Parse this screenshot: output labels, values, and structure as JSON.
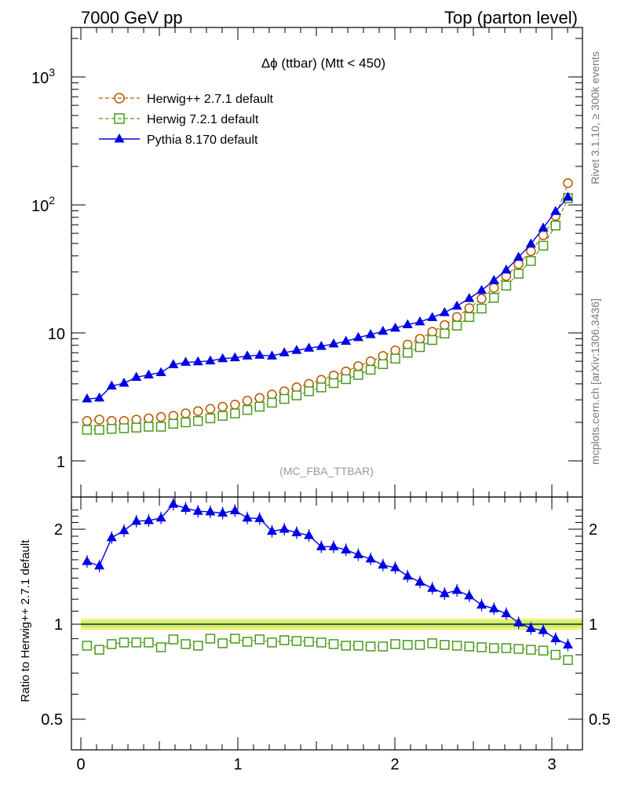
{
  "header": {
    "left": "7000 GeV pp",
    "right": "Top (parton level)"
  },
  "side_labels": {
    "rivet": "Rivet 3.1.10, ≥ 300k events",
    "mcplots": "mcplots.cern.ch [arXiv:1306.3436]"
  },
  "colors": {
    "herwigpp": "#b35900",
    "herwig7": "#4a9a1a",
    "pythia": "#0000e6",
    "band_yellow": "#f2f26a",
    "band_green": "#c8f07a"
  },
  "chart_data": [
    {
      "type": "line",
      "title": "Δϕ (ttbar) (Mtt < 450)",
      "watermark": "(MC_FBA_TTBAR)",
      "xlim": [
        -0.05,
        3.2
      ],
      "ylim": [
        0.6,
        2500
      ],
      "yscale": "log",
      "yticks": [
        {
          "value": 1,
          "label": "1"
        },
        {
          "value": 10,
          "label": "10"
        },
        {
          "value": 100,
          "label": "10^2"
        },
        {
          "value": 1000,
          "label": "10^3"
        }
      ],
      "legend": "top-left",
      "x": [
        0.0393,
        0.1178,
        0.1963,
        0.2749,
        0.3534,
        0.432,
        0.5105,
        0.589,
        0.6676,
        0.7461,
        0.8247,
        0.9032,
        0.9817,
        1.0603,
        1.1388,
        1.2174,
        1.2959,
        1.3744,
        1.453,
        1.5315,
        1.6101,
        1.6886,
        1.7671,
        1.8457,
        1.9242,
        2.0028,
        2.0813,
        2.1598,
        2.2384,
        2.3169,
        2.3955,
        2.474,
        2.5525,
        2.6311,
        2.7096,
        2.7882,
        2.8667,
        2.9452,
        3.0238,
        3.1023
      ],
      "series": [
        {
          "name": "Herwig++ 2.7.1 default",
          "style": "circle-dashed",
          "values": [
            2.05,
            2.1,
            2.05,
            2.05,
            2.1,
            2.15,
            2.2,
            2.25,
            2.35,
            2.45,
            2.55,
            2.65,
            2.75,
            2.95,
            3.1,
            3.3,
            3.5,
            3.75,
            4.0,
            4.3,
            4.65,
            5.0,
            5.5,
            6.0,
            6.6,
            7.3,
            8.1,
            9.0,
            10.2,
            11.5,
            13.3,
            15.6,
            18.5,
            22.5,
            27.8,
            34.5,
            43.5,
            58,
            82,
            148
          ]
        },
        {
          "name": "Herwig 7.2.1 default",
          "style": "square-dashed",
          "values": [
            1.75,
            1.75,
            1.78,
            1.8,
            1.82,
            1.85,
            1.85,
            1.95,
            2.0,
            2.05,
            2.15,
            2.25,
            2.35,
            2.5,
            2.65,
            2.85,
            3.05,
            3.25,
            3.5,
            3.75,
            4.05,
            4.35,
            4.7,
            5.15,
            5.7,
            6.3,
            7.0,
            7.75,
            8.8,
            9.9,
            11.4,
            13.3,
            15.5,
            18.8,
            23.4,
            29.0,
            36.5,
            48,
            69,
            113
          ]
        },
        {
          "name": "Pythia 8.170 default",
          "style": "triangle-solid",
          "values": [
            3.05,
            3.1,
            3.85,
            4.05,
            4.5,
            4.7,
            4.9,
            5.65,
            5.9,
            5.95,
            6.05,
            6.3,
            6.4,
            6.6,
            6.7,
            6.6,
            7.0,
            7.3,
            7.6,
            7.85,
            8.2,
            8.6,
            9.2,
            9.7,
            10.3,
            10.9,
            11.6,
            12.2,
            13.2,
            14.4,
            16.2,
            18.6,
            21.5,
            25.7,
            31.0,
            39.0,
            49.5,
            66,
            89,
            115
          ]
        }
      ]
    },
    {
      "type": "line",
      "ylabel": "Ratio to Herwig++ 2.7.1 default",
      "xlim": [
        -0.05,
        3.2
      ],
      "ylim": [
        0.42,
        2.35
      ],
      "yscale": "log",
      "xticks": [
        0,
        1,
        2,
        3
      ],
      "yticks": [
        {
          "value": 0.5,
          "label": "0.5"
        },
        {
          "value": 1,
          "label": "1"
        },
        {
          "value": 2,
          "label": "2"
        }
      ],
      "x": [
        0.0393,
        0.1178,
        0.1963,
        0.2749,
        0.3534,
        0.432,
        0.5105,
        0.589,
        0.6676,
        0.7461,
        0.8247,
        0.9032,
        0.9817,
        1.0603,
        1.1388,
        1.2174,
        1.2959,
        1.3744,
        1.453,
        1.5315,
        1.6101,
        1.6886,
        1.7671,
        1.8457,
        1.9242,
        2.0028,
        2.0813,
        2.1598,
        2.2384,
        2.3169,
        2.3955,
        2.474,
        2.5525,
        2.6311,
        2.7096,
        2.7882,
        2.8667,
        2.9452,
        3.0238,
        3.1023
      ],
      "series": [
        {
          "name": "Herwig++ 2.7.1 default",
          "style": "reference",
          "values": [
            1,
            1,
            1,
            1,
            1,
            1,
            1,
            1,
            1,
            1,
            1,
            1,
            1,
            1,
            1,
            1,
            1,
            1,
            1,
            1,
            1,
            1,
            1,
            1,
            1,
            1,
            1,
            1,
            1,
            1,
            1,
            1,
            1,
            1,
            1,
            1,
            1,
            1,
            1,
            1
          ]
        },
        {
          "name": "Herwig 7.2.1 default",
          "style": "square-dashed",
          "values": [
            0.855,
            0.83,
            0.865,
            0.875,
            0.875,
            0.875,
            0.845,
            0.895,
            0.865,
            0.855,
            0.9,
            0.87,
            0.9,
            0.88,
            0.895,
            0.875,
            0.89,
            0.885,
            0.88,
            0.875,
            0.865,
            0.855,
            0.855,
            0.85,
            0.85,
            0.865,
            0.86,
            0.86,
            0.87,
            0.86,
            0.855,
            0.85,
            0.845,
            0.84,
            0.84,
            0.835,
            0.83,
            0.825,
            0.8,
            0.77
          ]
        },
        {
          "name": "Pythia 8.170 default",
          "style": "triangle-solid",
          "values": [
            1.58,
            1.53,
            1.88,
            1.98,
            2.12,
            2.13,
            2.17,
            2.4,
            2.33,
            2.28,
            2.27,
            2.25,
            2.29,
            2.17,
            2.16,
            1.97,
            2.0,
            1.95,
            1.91,
            1.76,
            1.76,
            1.72,
            1.66,
            1.61,
            1.54,
            1.51,
            1.42,
            1.36,
            1.3,
            1.25,
            1.28,
            1.23,
            1.15,
            1.12,
            1.08,
            1.01,
            0.97,
            0.955,
            0.9,
            0.86
          ]
        }
      ]
    }
  ]
}
